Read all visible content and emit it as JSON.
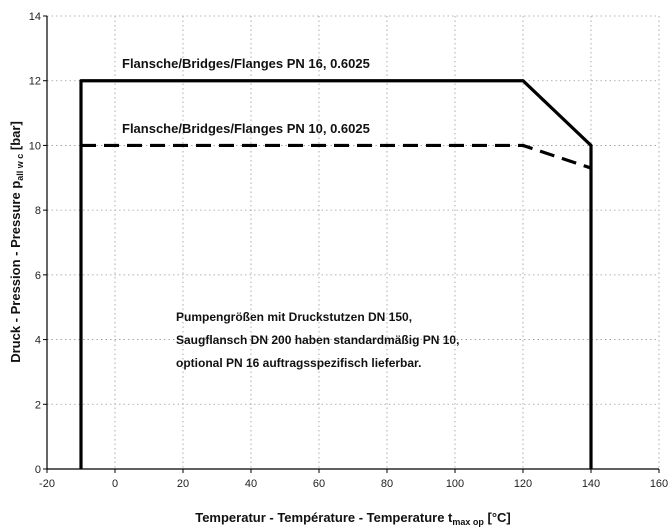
{
  "chart_data": {
    "type": "line",
    "xlabel": "Temperatur - Température - Temperature t",
    "xlabel_sub": "max op",
    "xlabel_unit": " [°C]",
    "ylabel": "Druck - Pression - Pressure p",
    "ylabel_sub": "all w c",
    "ylabel_unit": " [bar]",
    "xlim": [
      -20,
      160
    ],
    "ylim": [
      0,
      14
    ],
    "x_ticks": [
      -20,
      0,
      20,
      40,
      60,
      80,
      100,
      120,
      140,
      160
    ],
    "y_ticks": [
      0,
      2,
      4,
      6,
      8,
      10,
      12,
      14
    ],
    "grid": true,
    "series": [
      {
        "name": "Flansche/Bridges/Flanges PN 16, 0.6025",
        "style": "solid",
        "color": "#000000",
        "points": [
          [
            -10,
            0
          ],
          [
            -10,
            12
          ],
          [
            120,
            12
          ],
          [
            140,
            10
          ],
          [
            140,
            0
          ]
        ]
      },
      {
        "name": "Flansche/Bridges/Flanges PN 10, 0.6025",
        "style": "dashed",
        "color": "#000000",
        "points": [
          [
            -10,
            10
          ],
          [
            120,
            10
          ],
          [
            140,
            9.3
          ]
        ]
      }
    ],
    "annotations": [
      "Pumpengrößen mit Druckstutzen DN 150,",
      "Saugflansch DN 200 haben standardmäßig PN 10,",
      "optional PN 16 auftragsspezifisch lieferbar."
    ]
  }
}
